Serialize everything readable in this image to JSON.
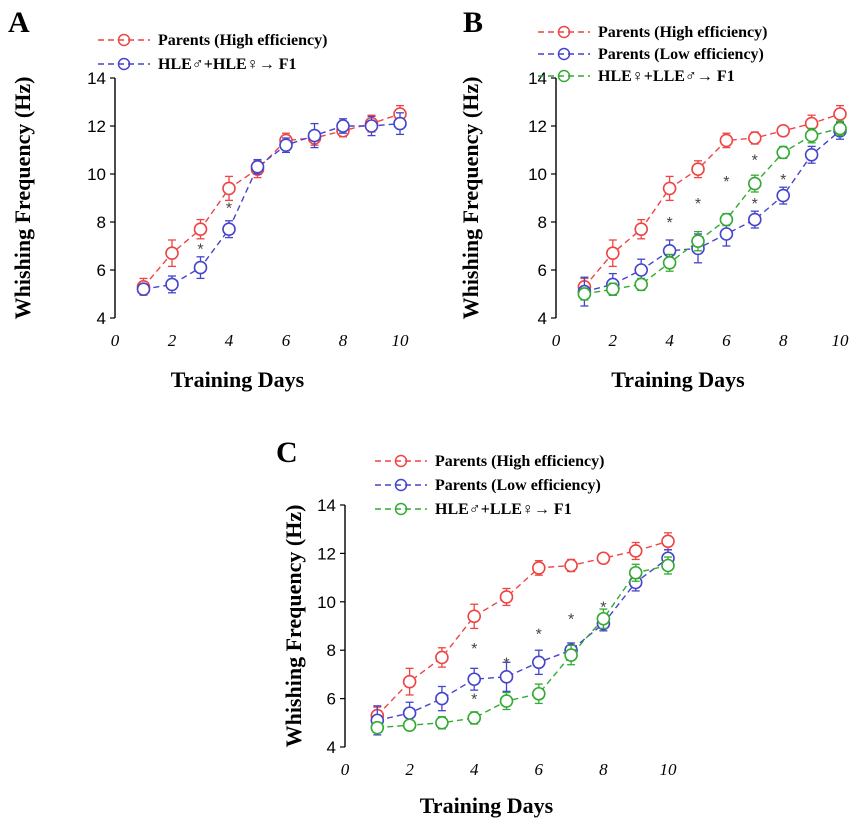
{
  "chart_data": [
    {
      "panel": "A",
      "type": "line",
      "xlabel": "Training Days",
      "ylabel": "Whishing Frequency (Hz)",
      "xlim": [
        0,
        10
      ],
      "ylim": [
        4,
        14
      ],
      "xticks": [
        "0",
        "2",
        "4",
        "6",
        "8",
        "10"
      ],
      "yticks": [
        "4",
        "6",
        "8",
        "10",
        "12",
        "14"
      ],
      "x": [
        1,
        2,
        3,
        4,
        5,
        6,
        7,
        8,
        9,
        10
      ],
      "legend_position": "top",
      "series": [
        {
          "name": "Parents (High efficiency)",
          "color": "#ee4444",
          "values": [
            5.3,
            6.7,
            7.7,
            9.4,
            10.2,
            11.4,
            11.5,
            11.8,
            12.1,
            12.5
          ],
          "err": [
            0.35,
            0.55,
            0.4,
            0.5,
            0.35,
            0.3,
            0.3,
            0.25,
            0.35,
            0.35
          ]
        },
        {
          "name": "HLE♂+HLE♀→ F1",
          "color": "#4444cc",
          "values": [
            5.2,
            5.4,
            6.1,
            7.7,
            10.3,
            11.2,
            11.6,
            12.0,
            12.0,
            12.1
          ],
          "err": [
            0.2,
            0.35,
            0.45,
            0.35,
            0.3,
            0.3,
            0.5,
            0.3,
            0.4,
            0.45
          ]
        }
      ],
      "significance": [
        {
          "x": 3,
          "y": 6.9,
          "symbol": "*"
        },
        {
          "x": 4,
          "y": 8.6,
          "symbol": "*"
        }
      ]
    },
    {
      "panel": "B",
      "type": "line",
      "xlabel": "Training Days",
      "ylabel": "Whishing Frequency (Hz)",
      "xlim": [
        0,
        10
      ],
      "ylim": [
        4,
        14
      ],
      "xticks": [
        "0",
        "2",
        "4",
        "6",
        "8",
        "10"
      ],
      "yticks": [
        "4",
        "6",
        "8",
        "10",
        "12",
        "14"
      ],
      "x": [
        1,
        2,
        3,
        4,
        5,
        6,
        7,
        8,
        9,
        10
      ],
      "legend_position": "top",
      "series": [
        {
          "name": "Parents (High efficiency)",
          "color": "#ee4444",
          "values": [
            5.3,
            6.7,
            7.7,
            9.4,
            10.2,
            11.4,
            11.5,
            11.8,
            12.1,
            12.5
          ],
          "err": [
            0.35,
            0.55,
            0.4,
            0.5,
            0.35,
            0.3,
            0.25,
            0.2,
            0.35,
            0.35
          ]
        },
        {
          "name": "Parents (Low efficiency)",
          "color": "#4444cc",
          "values": [
            5.1,
            5.4,
            6.0,
            6.8,
            6.9,
            7.5,
            8.1,
            9.1,
            10.8,
            11.8
          ],
          "err": [
            0.6,
            0.45,
            0.45,
            0.45,
            0.6,
            0.5,
            0.35,
            0.35,
            0.35,
            0.35
          ]
        },
        {
          "name": "HLE♀+LLE♂→ F1",
          "color": "#33aa33",
          "values": [
            5.0,
            5.2,
            5.4,
            6.3,
            7.2,
            8.1,
            9.6,
            10.9,
            11.6,
            11.9
          ],
          "err": [
            0.25,
            0.25,
            0.25,
            0.35,
            0.4,
            0.25,
            0.35,
            0.25,
            0.3,
            0.3
          ]
        }
      ],
      "significance": [
        {
          "x": 4,
          "y": 8.0,
          "symbol": "*"
        },
        {
          "x": 5,
          "y": 8.8,
          "symbol": "*"
        },
        {
          "x": 6,
          "y": 9.7,
          "symbol": "*"
        },
        {
          "x": 7,
          "y": 10.6,
          "symbol": "*"
        },
        {
          "x": 7,
          "y": 8.8,
          "symbol": "*"
        },
        {
          "x": 8,
          "y": 9.8,
          "symbol": "*"
        }
      ]
    },
    {
      "panel": "C",
      "type": "line",
      "xlabel": "Training Days",
      "ylabel": "Whishing Frequency (Hz)",
      "xlim": [
        0,
        10
      ],
      "ylim": [
        4,
        14
      ],
      "xticks": [
        "0",
        "2",
        "4",
        "6",
        "8",
        "10"
      ],
      "yticks": [
        "4",
        "6",
        "8",
        "10",
        "12",
        "14"
      ],
      "x": [
        1,
        2,
        3,
        4,
        5,
        6,
        7,
        8,
        9,
        10
      ],
      "legend_position": "top",
      "series": [
        {
          "name": "Parents (High efficiency)",
          "color": "#ee4444",
          "values": [
            5.3,
            6.7,
            7.7,
            9.4,
            10.2,
            11.4,
            11.5,
            11.8,
            12.1,
            12.5
          ],
          "err": [
            0.35,
            0.55,
            0.4,
            0.5,
            0.35,
            0.3,
            0.25,
            0.2,
            0.35,
            0.35
          ]
        },
        {
          "name": "Parents (Low efficiency)",
          "color": "#4444cc",
          "values": [
            5.1,
            5.4,
            6.0,
            6.8,
            6.9,
            7.5,
            8.0,
            9.1,
            10.8,
            11.8
          ],
          "err": [
            0.6,
            0.45,
            0.5,
            0.45,
            0.6,
            0.5,
            0.3,
            0.3,
            0.35,
            0.35
          ]
        },
        {
          "name": "HLE♂+LLE♀→ F1",
          "color": "#33aa33",
          "values": [
            4.8,
            4.9,
            5.0,
            5.2,
            5.9,
            6.2,
            7.8,
            9.3,
            11.2,
            11.5
          ],
          "err": [
            0.2,
            0.2,
            0.25,
            0.25,
            0.35,
            0.4,
            0.4,
            0.4,
            0.35,
            0.35
          ]
        }
      ],
      "significance": [
        {
          "x": 4,
          "y": 8.1,
          "symbol": "*"
        },
        {
          "x": 4,
          "y": 6.0,
          "symbol": "*"
        },
        {
          "x": 5,
          "y": 7.5,
          "symbol": "*"
        },
        {
          "x": 6,
          "y": 8.7,
          "symbol": "*"
        },
        {
          "x": 7,
          "y": 9.3,
          "symbol": "*"
        },
        {
          "x": 8,
          "y": 9.8,
          "symbol": "*"
        }
      ]
    }
  ]
}
